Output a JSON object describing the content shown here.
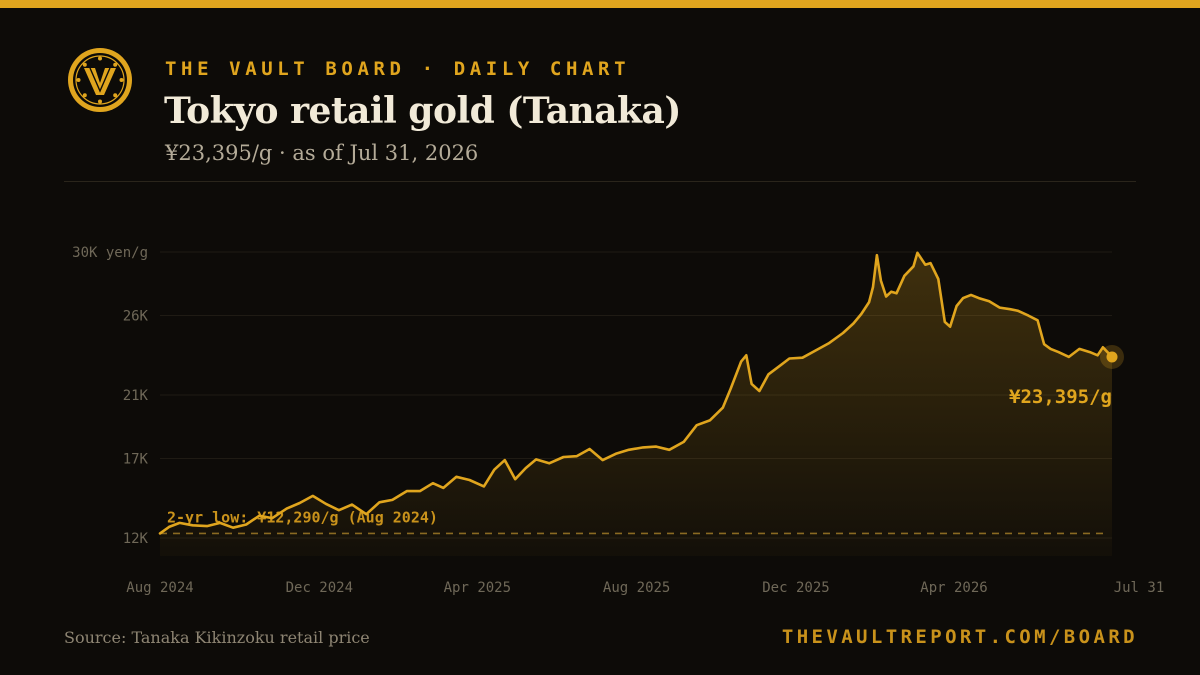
{
  "brand": {
    "kicker": "THE VAULT BOARD · DAILY CHART",
    "logo_icon": "vault-v-dial-icon",
    "accent_color": "#e0a51e"
  },
  "header": {
    "title": "Tokyo retail gold (Tanaka)",
    "subtitle": "¥23,395/g · as of Jul 31, 2026"
  },
  "footer": {
    "source": "Source: Tanaka Kikinzoku retail price",
    "site": "THEVAULTREPORT.COM/BOARD"
  },
  "chart_data": {
    "type": "area",
    "title": "Tokyo retail gold (Tanaka)",
    "unit": "yen/g",
    "y_ticks": [
      {
        "value": 12000,
        "label": "12K"
      },
      {
        "value": 17000,
        "label": "17K"
      },
      {
        "value": 21000,
        "label": "21K"
      },
      {
        "value": 26000,
        "label": "26K"
      },
      {
        "value": 30000,
        "label": "30K yen/g"
      }
    ],
    "x_ticks": [
      {
        "date": "2024-08-01",
        "label": "Aug 2024"
      },
      {
        "date": "2024-12-01",
        "label": "Dec 2024"
      },
      {
        "date": "2025-04-01",
        "label": "Apr 2025"
      },
      {
        "date": "2025-08-01",
        "label": "Aug 2025"
      },
      {
        "date": "2025-12-01",
        "label": "Dec 2025"
      },
      {
        "date": "2026-04-01",
        "label": "Apr 2026"
      },
      {
        "date": "2026-07-31",
        "label": "Jul 31"
      }
    ],
    "xlim": [
      "2024-08-01",
      "2026-07-31"
    ],
    "ylim": [
      11000,
      30500
    ],
    "grid": true,
    "reference_line": {
      "value": 12290,
      "label": "2-yr low: ¥12,290/g (Aug 2024)",
      "style": "dashed"
    },
    "end_label": "¥23,395/g",
    "series": [
      {
        "color": "#e0a51e",
        "points": [
          [
            "2024-08-01",
            12290
          ],
          [
            "2024-08-08",
            12700
          ],
          [
            "2024-08-16",
            12950
          ],
          [
            "2024-08-26",
            12800
          ],
          [
            "2024-09-06",
            12750
          ],
          [
            "2024-09-16",
            12950
          ],
          [
            "2024-09-26",
            12650
          ],
          [
            "2024-10-06",
            12850
          ],
          [
            "2024-10-16",
            13400
          ],
          [
            "2024-10-26",
            13250
          ],
          [
            "2024-11-06",
            13850
          ],
          [
            "2024-11-16",
            14200
          ],
          [
            "2024-11-26",
            14650
          ],
          [
            "2024-12-06",
            14150
          ],
          [
            "2024-12-16",
            13750
          ],
          [
            "2024-12-26",
            14100
          ],
          [
            "2025-01-06",
            13500
          ],
          [
            "2025-01-16",
            14250
          ],
          [
            "2025-01-26",
            14400
          ],
          [
            "2025-02-06",
            14950
          ],
          [
            "2025-02-16",
            14950
          ],
          [
            "2025-02-26",
            15450
          ],
          [
            "2025-03-06",
            15150
          ],
          [
            "2025-03-16",
            15850
          ],
          [
            "2025-03-26",
            15650
          ],
          [
            "2025-04-06",
            15250
          ],
          [
            "2025-04-14",
            16300
          ],
          [
            "2025-04-22",
            16900
          ],
          [
            "2025-04-30",
            15700
          ],
          [
            "2025-05-08",
            16400
          ],
          [
            "2025-05-16",
            16950
          ],
          [
            "2025-05-26",
            16700
          ],
          [
            "2025-06-06",
            17100
          ],
          [
            "2025-06-16",
            17150
          ],
          [
            "2025-06-26",
            17600
          ],
          [
            "2025-07-06",
            16900
          ],
          [
            "2025-07-16",
            17300
          ],
          [
            "2025-07-26",
            17550
          ],
          [
            "2025-08-06",
            17700
          ],
          [
            "2025-08-16",
            17750
          ],
          [
            "2025-08-26",
            17550
          ],
          [
            "2025-09-06",
            18050
          ],
          [
            "2025-09-16",
            19100
          ],
          [
            "2025-09-26",
            19400
          ],
          [
            "2025-10-06",
            20200
          ],
          [
            "2025-10-12",
            21400
          ],
          [
            "2025-10-20",
            23100
          ],
          [
            "2025-10-24",
            23500
          ],
          [
            "2025-10-28",
            21700
          ],
          [
            "2025-11-03",
            21250
          ],
          [
            "2025-11-10",
            22300
          ],
          [
            "2025-11-18",
            22800
          ],
          [
            "2025-11-26",
            23300
          ],
          [
            "2025-12-06",
            23350
          ],
          [
            "2025-12-16",
            23800
          ],
          [
            "2025-12-26",
            24250
          ],
          [
            "2026-01-06",
            24900
          ],
          [
            "2026-01-14",
            25500
          ],
          [
            "2026-01-20",
            26100
          ],
          [
            "2026-01-26",
            26850
          ],
          [
            "2026-01-29",
            27800
          ],
          [
            "2026-02-01",
            29800
          ],
          [
            "2026-02-04",
            28200
          ],
          [
            "2026-02-08",
            27200
          ],
          [
            "2026-02-12",
            27500
          ],
          [
            "2026-02-16",
            27400
          ],
          [
            "2026-02-22",
            28500
          ],
          [
            "2026-03-01",
            29100
          ],
          [
            "2026-03-04",
            29950
          ],
          [
            "2026-03-10",
            29200
          ],
          [
            "2026-03-14",
            29300
          ],
          [
            "2026-03-20",
            28300
          ],
          [
            "2026-03-25",
            25600
          ],
          [
            "2026-03-29",
            25300
          ],
          [
            "2026-04-03",
            26600
          ],
          [
            "2026-04-08",
            27100
          ],
          [
            "2026-04-14",
            27300
          ],
          [
            "2026-04-20",
            27100
          ],
          [
            "2026-04-28",
            26900
          ],
          [
            "2026-05-06",
            26500
          ],
          [
            "2026-05-14",
            26400
          ],
          [
            "2026-05-20",
            26300
          ],
          [
            "2026-05-28",
            26000
          ],
          [
            "2026-06-04",
            25700
          ],
          [
            "2026-06-09",
            24200
          ],
          [
            "2026-06-14",
            23900
          ],
          [
            "2026-06-20",
            23700
          ],
          [
            "2026-06-28",
            23400
          ],
          [
            "2026-07-06",
            23900
          ],
          [
            "2026-07-14",
            23700
          ],
          [
            "2026-07-20",
            23500
          ],
          [
            "2026-07-24",
            24000
          ],
          [
            "2026-07-31",
            23395
          ]
        ]
      }
    ]
  }
}
